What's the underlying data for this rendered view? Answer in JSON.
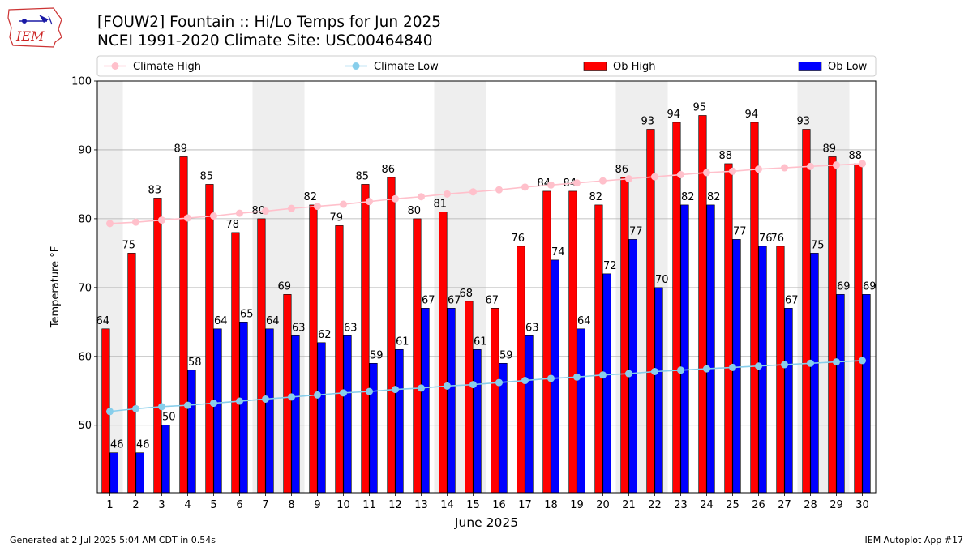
{
  "header": {
    "title_line1": "[FOUW2] Fountain :: Hi/Lo Temps for Jun 2025",
    "title_line2": "NCEI 1991-2020 Climate Site: USC00464840",
    "logo_text": "IEM"
  },
  "footer": {
    "left": "Generated at 2 Jul 2025 5:04 AM CDT in 0.54s",
    "right": "IEM Autoplot App #17"
  },
  "colors": {
    "ob_high": "#ff0000",
    "ob_low": "#0000ff",
    "climate_high": "#ffc0cb",
    "climate_low": "#87ceeb",
    "weekend_band": "#eeeeee",
    "grid": "#b0b0b0"
  },
  "chart_data": {
    "type": "bar",
    "xlabel": "June 2025",
    "ylabel": "Temperature °F",
    "ylim": [
      40,
      100
    ],
    "yticks": [
      50,
      60,
      70,
      80,
      90,
      100
    ],
    "grid": "horizontal",
    "legend_placement": "top",
    "categories": [
      "1",
      "2",
      "3",
      "4",
      "5",
      "6",
      "7",
      "8",
      "9",
      "10",
      "11",
      "12",
      "13",
      "14",
      "15",
      "16",
      "17",
      "18",
      "19",
      "20",
      "21",
      "22",
      "23",
      "24",
      "25",
      "26",
      "27",
      "28",
      "29",
      "30"
    ],
    "shaded_days": [
      1,
      7,
      8,
      14,
      15,
      21,
      22,
      28,
      29
    ],
    "series": [
      {
        "name": "Ob High",
        "kind": "bar",
        "values": [
          64,
          75,
          83,
          89,
          85,
          78,
          80,
          69,
          82,
          79,
          85,
          86,
          80,
          81,
          68,
          67,
          76,
          84,
          84,
          82,
          86,
          93,
          94,
          95,
          88,
          94,
          76,
          93,
          89,
          88
        ]
      },
      {
        "name": "Ob Low",
        "kind": "bar",
        "values": [
          46,
          46,
          50,
          58,
          64,
          65,
          64,
          63,
          62,
          63,
          59,
          61,
          67,
          67,
          61,
          59,
          63,
          74,
          64,
          72,
          77,
          70,
          82,
          82,
          77,
          76,
          67,
          75,
          69,
          69
        ]
      },
      {
        "name": "Climate High",
        "kind": "line",
        "values": [
          79.3,
          79.5,
          79.8,
          80.1,
          80.4,
          80.8,
          81.1,
          81.5,
          81.8,
          82.1,
          82.5,
          82.9,
          83.2,
          83.6,
          83.9,
          84.2,
          84.6,
          84.9,
          85.2,
          85.5,
          85.8,
          86.1,
          86.4,
          86.7,
          86.9,
          87.2,
          87.4,
          87.6,
          87.8,
          88.0
        ]
      },
      {
        "name": "Climate Low",
        "kind": "line",
        "values": [
          52.0,
          52.4,
          52.7,
          52.9,
          53.2,
          53.5,
          53.8,
          54.1,
          54.4,
          54.7,
          54.9,
          55.2,
          55.4,
          55.7,
          55.9,
          56.2,
          56.5,
          56.8,
          57.0,
          57.3,
          57.5,
          57.8,
          58.0,
          58.2,
          58.4,
          58.6,
          58.8,
          59.0,
          59.2,
          59.4
        ]
      }
    ],
    "legend": [
      "Climate High",
      "Climate Low",
      "Ob High",
      "Ob Low"
    ]
  }
}
